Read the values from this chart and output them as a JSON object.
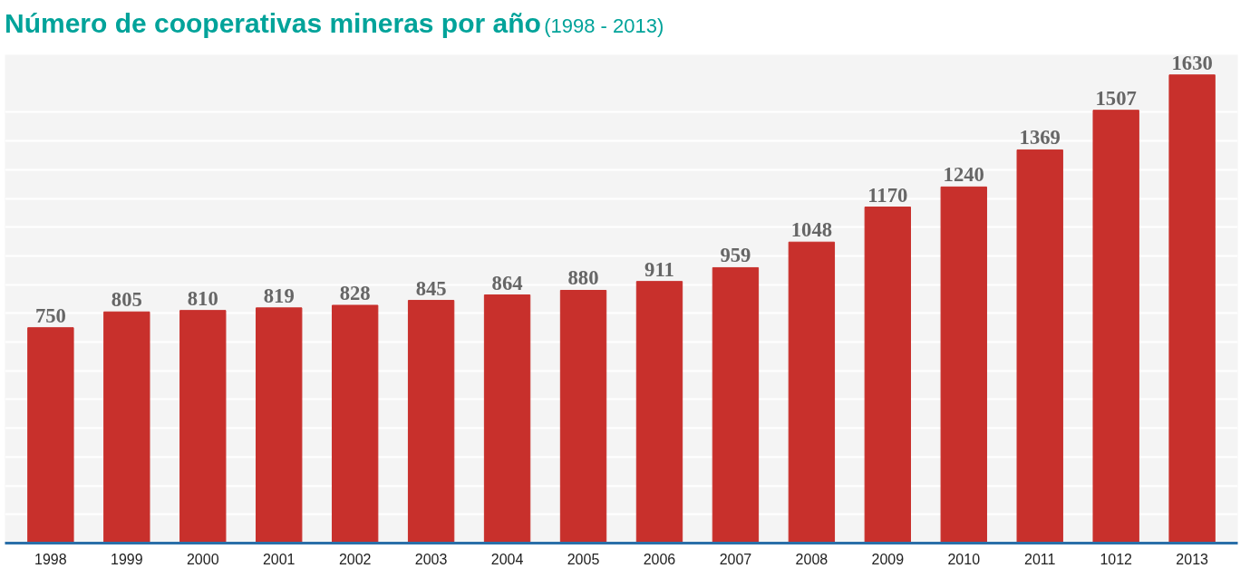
{
  "chart_data": {
    "type": "bar",
    "title": "Número de cooperativas mineras por año",
    "subtitle": "(1998 - 2013)",
    "categories": [
      "1998",
      "1999",
      "2000",
      "2001",
      "2002",
      "2003",
      "2004",
      "2005",
      "2006",
      "2007",
      "2008",
      "2009",
      "2010",
      "2011",
      "1012",
      "2013"
    ],
    "values": [
      750,
      805,
      810,
      819,
      828,
      845,
      864,
      880,
      911,
      959,
      1048,
      1170,
      1240,
      1369,
      1507,
      1630
    ],
    "color": "#c8302c",
    "data_labels": true,
    "grid": "y",
    "tick_labels": "x",
    "ylim": [
      0,
      1700
    ],
    "yticks": [
      {
        "value": 0,
        "label": null
      },
      {
        "value": 100,
        "label": null
      },
      {
        "value": 200,
        "label": null
      },
      {
        "value": 300,
        "label": null
      },
      {
        "value": 400,
        "label": null
      },
      {
        "value": 500,
        "label": null
      },
      {
        "value": 600,
        "label": null
      },
      {
        "value": 700,
        "label": null
      },
      {
        "value": 800,
        "label": null
      },
      {
        "value": 900,
        "label": null
      },
      {
        "value": 1000,
        "label": null
      },
      {
        "value": 1100,
        "label": null
      },
      {
        "value": 1200,
        "label": null
      },
      {
        "value": 1300,
        "label": null
      },
      {
        "value": 1400,
        "label": null
      },
      {
        "value": 1500,
        "label": null
      }
    ]
  }
}
